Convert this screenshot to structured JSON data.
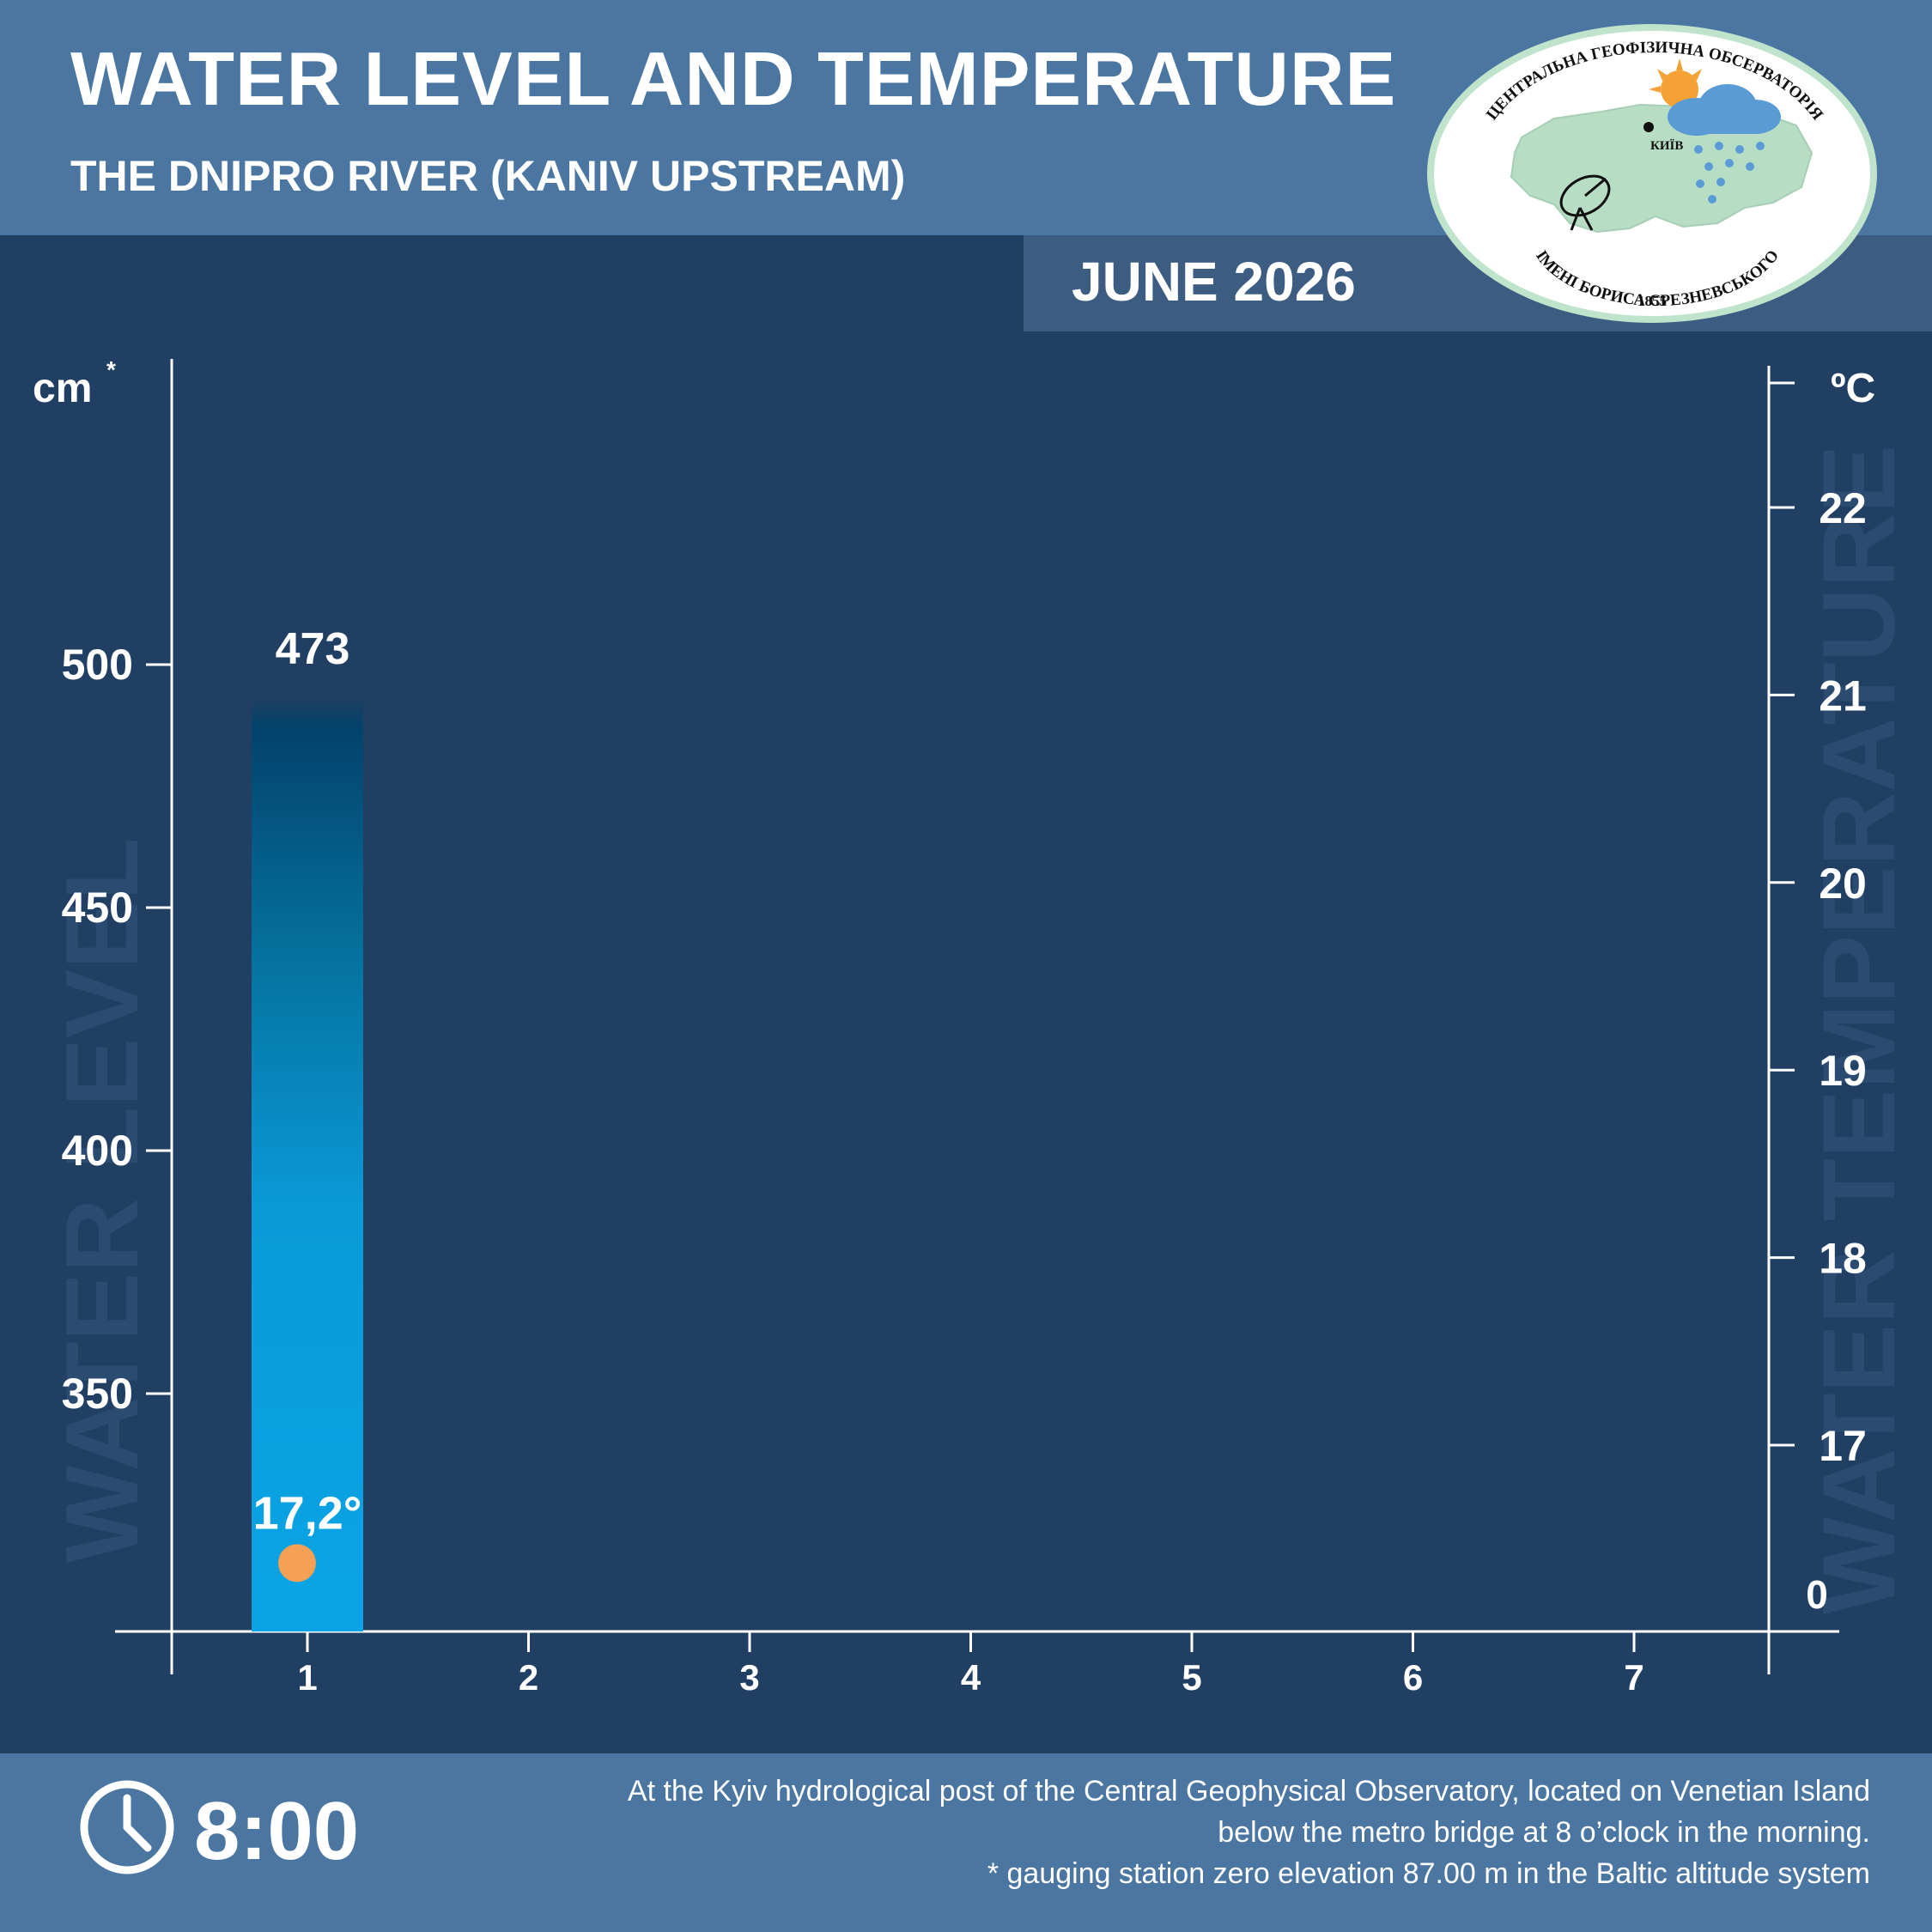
{
  "header": {
    "title": "WATER LEVEL AND TEMPERATURE",
    "subtitle": "THE DNIPRO RIVER (KANIV UPSTREAM)",
    "month": "JUNE 2026"
  },
  "logo": {
    "top_text": "ЦЕНТРАЛЬНА ГЕОФІЗИЧНА ОБСЕРВАТОРІЯ",
    "bottom_text": "ІМЕНІ БОРИСА СРЕЗНЕВСЬКОГО",
    "year": "1855",
    "city": "КИЇВ"
  },
  "footer": {
    "time": "8:00",
    "note_line1": "At the Kyiv hydrological post of the Central Geophysical Observatory, located on Venetian Island",
    "note_line2": "below the metro bridge  at 8 o’clock in the morning.",
    "note_line3": "* gauging station zero elevation 87.00 m in the Baltic altitude system"
  },
  "colors": {
    "background": "#203f63",
    "header": "#4a76a1",
    "bar_top": "#03426b",
    "bar_bottom": "#0aa4e6",
    "temperature_point": "#f4a055",
    "ghost_text": "#2c4b70"
  },
  "icons": [
    "clock-icon",
    "observatory-logo"
  ],
  "chart_data": {
    "type": "bar",
    "title": "WATER LEVEL AND TEMPERATURE",
    "left_axis": {
      "unit_label": "cm",
      "unit_mark": "*",
      "watermark": "WATER LEVEL",
      "ticks": [
        350,
        400,
        450,
        500
      ],
      "range": [
        302,
        552
      ]
    },
    "right_axis": {
      "unit_label": "ºC",
      "watermark": "WATER TEMPERATURE",
      "ticks": [
        17,
        18,
        19,
        20,
        21,
        22
      ],
      "range": [
        16.2,
        22.7
      ],
      "zero_label": "0"
    },
    "x_categories": [
      "1",
      "2",
      "3",
      "4",
      "5",
      "6",
      "7"
    ],
    "series": [
      {
        "kind": "bar",
        "axis": "left",
        "values": [
          473
        ],
        "labels": [
          "473"
        ]
      },
      {
        "kind": "point",
        "axis": "right",
        "values": [
          17.2
        ],
        "labels": [
          "17,2°"
        ]
      }
    ],
    "grid": false
  }
}
